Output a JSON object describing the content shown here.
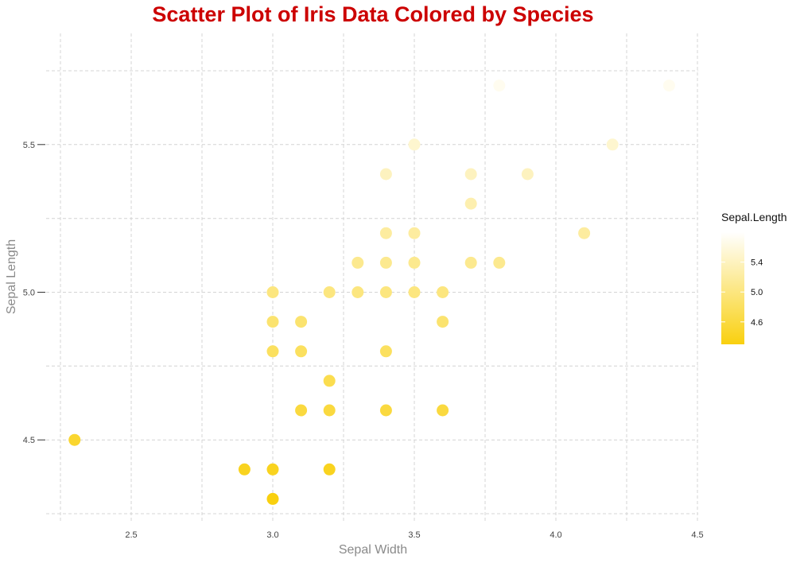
{
  "chart_data": {
    "type": "scatter",
    "title": "Scatter Plot of Iris Data Colored by Species",
    "title_color": "#cc0000",
    "xlabel": "Sepal Width",
    "ylabel": "Sepal Length",
    "xlim": [
      2.25,
      4.5
    ],
    "ylim": [
      4.25,
      5.75
    ],
    "x_ticks": [
      2.5,
      3.0,
      3.5,
      4.0,
      4.5
    ],
    "x_tick_labels": [
      "2.5",
      "3.0",
      "3.5",
      "4.0",
      "4.5"
    ],
    "y_ticks": [
      4.5,
      5.0,
      5.5
    ],
    "y_tick_labels": [
      "4.5",
      "5.0",
      "5.5"
    ],
    "grid": true,
    "legend": {
      "title": "Sepal.Length",
      "placement": "right",
      "range": [
        4.3,
        5.8
      ],
      "ticks": [
        4.6,
        5.0,
        5.4
      ],
      "tick_labels": [
        "4.6",
        "5.0",
        "5.4"
      ],
      "color_low": "#f9d00f",
      "color_high": "#ffffff"
    },
    "points": [
      {
        "x": 2.3,
        "y": 4.5
      },
      {
        "x": 2.9,
        "y": 4.4
      },
      {
        "x": 3.0,
        "y": 4.4
      },
      {
        "x": 3.0,
        "y": 4.3
      },
      {
        "x": 3.0,
        "y": 4.8
      },
      {
        "x": 3.0,
        "y": 4.9
      },
      {
        "x": 3.0,
        "y": 5.0
      },
      {
        "x": 3.1,
        "y": 4.6
      },
      {
        "x": 3.1,
        "y": 4.8
      },
      {
        "x": 3.1,
        "y": 4.9
      },
      {
        "x": 3.2,
        "y": 4.4
      },
      {
        "x": 3.2,
        "y": 4.6
      },
      {
        "x": 3.2,
        "y": 4.7
      },
      {
        "x": 3.2,
        "y": 5.0
      },
      {
        "x": 3.3,
        "y": 5.0
      },
      {
        "x": 3.3,
        "y": 5.1
      },
      {
        "x": 3.4,
        "y": 4.6
      },
      {
        "x": 3.4,
        "y": 4.8
      },
      {
        "x": 3.4,
        "y": 5.0
      },
      {
        "x": 3.4,
        "y": 5.1
      },
      {
        "x": 3.4,
        "y": 5.2
      },
      {
        "x": 3.4,
        "y": 5.4
      },
      {
        "x": 3.5,
        "y": 5.0
      },
      {
        "x": 3.5,
        "y": 5.1
      },
      {
        "x": 3.5,
        "y": 5.2
      },
      {
        "x": 3.5,
        "y": 5.5
      },
      {
        "x": 3.6,
        "y": 4.6
      },
      {
        "x": 3.6,
        "y": 4.9
      },
      {
        "x": 3.6,
        "y": 5.0
      },
      {
        "x": 3.7,
        "y": 5.1
      },
      {
        "x": 3.7,
        "y": 5.3
      },
      {
        "x": 3.7,
        "y": 5.4
      },
      {
        "x": 3.8,
        "y": 5.1
      },
      {
        "x": 3.8,
        "y": 5.7
      },
      {
        "x": 3.9,
        "y": 5.4
      },
      {
        "x": 4.1,
        "y": 5.2
      },
      {
        "x": 4.2,
        "y": 5.5
      },
      {
        "x": 4.4,
        "y": 5.7
      }
    ]
  }
}
